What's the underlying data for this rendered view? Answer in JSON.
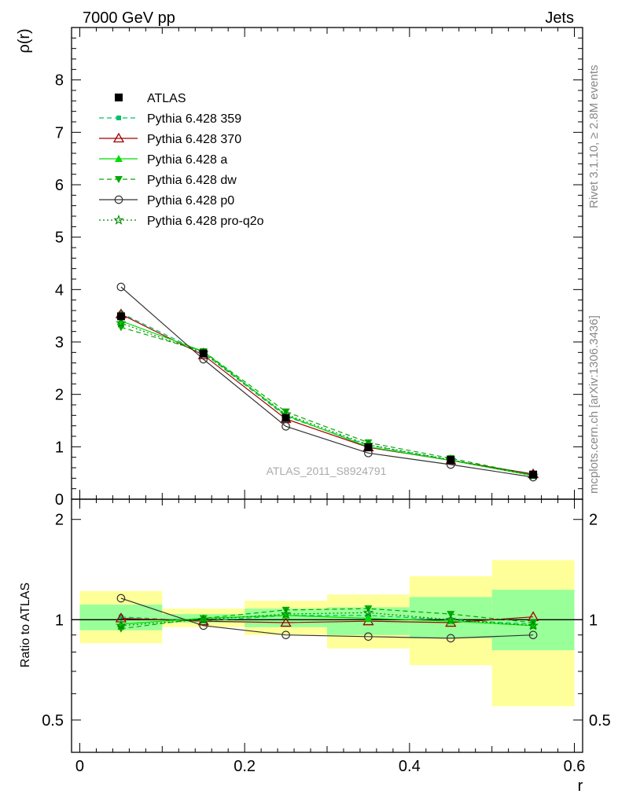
{
  "header": {
    "left": "7000 GeV pp",
    "right": "Jets"
  },
  "side_labels": {
    "rivet": "Rivet 3.1.10, ≥ 2.8M events",
    "mcplots": "mcplots.cern.ch [arXiv:1306.3436]"
  },
  "analysis_label": "ATLAS_2011_S8924791",
  "colors": {
    "atlas": "#000000",
    "p359": "#00c06a",
    "p370": "#a00000",
    "a": "#00dd00",
    "dw": "#00aa00",
    "p0": "#333333",
    "proq2o": "#008800",
    "band_yellow": "#ffff99",
    "band_green": "#99ff99"
  },
  "chart_data": [
    {
      "type": "line",
      "panel": "main",
      "ylabel": "ρ(r)",
      "ylim": [
        0,
        9
      ],
      "yticks": [
        0,
        1,
        2,
        3,
        4,
        5,
        6,
        7,
        8
      ],
      "ytick_labels": [
        "0",
        "1",
        "2",
        "3",
        "4",
        "5",
        "6",
        "7",
        "8"
      ],
      "xlim": [
        -0.01,
        0.61
      ],
      "x": [
        0.05,
        0.15,
        0.25,
        0.35,
        0.45,
        0.55
      ],
      "legend_position": "top-left",
      "series": [
        {
          "name": "ATLAS",
          "key": "atlas",
          "values": [
            3.49,
            2.78,
            1.55,
            0.99,
            0.75,
            0.47
          ],
          "marker": "square",
          "line": "none"
        },
        {
          "name": "Pythia 6.428 359",
          "key": "p359",
          "values": [
            3.55,
            2.79,
            1.58,
            1.03,
            0.75,
            0.46
          ],
          "marker": "smallsquare",
          "line": "dashed"
        },
        {
          "name": "Pythia 6.428 370",
          "key": "p370",
          "values": [
            3.53,
            2.75,
            1.53,
            0.99,
            0.74,
            0.48
          ],
          "marker": "triangle-open",
          "line": "solid"
        },
        {
          "name": "Pythia 6.428 a",
          "key": "a",
          "values": [
            3.4,
            2.82,
            1.6,
            1.0,
            0.74,
            0.45
          ],
          "marker": "triangle",
          "line": "solid"
        },
        {
          "name": "Pythia 6.428 dw",
          "key": "dw",
          "values": [
            3.28,
            2.82,
            1.67,
            1.08,
            0.78,
            0.46
          ],
          "marker": "triangle-down",
          "line": "dashed"
        },
        {
          "name": "Pythia 6.428 p0",
          "key": "p0",
          "values": [
            4.05,
            2.67,
            1.39,
            0.88,
            0.66,
            0.42
          ],
          "marker": "circle-open",
          "line": "solid"
        },
        {
          "name": "Pythia 6.428 pro-q2o",
          "key": "proq2o",
          "values": [
            3.36,
            2.79,
            1.62,
            1.04,
            0.75,
            0.45
          ],
          "marker": "star",
          "line": "dotted"
        }
      ]
    },
    {
      "type": "line",
      "panel": "ratio",
      "ylabel": "Ratio to ATLAS",
      "xlabel": "r",
      "yscale": "log",
      "ylim": [
        0.4,
        2.3
      ],
      "yticks": [
        0.5,
        1,
        2
      ],
      "ytick_labels": [
        "0.5",
        "1",
        "2"
      ],
      "xlim": [
        -0.01,
        0.61
      ],
      "xticks": [
        0,
        0.2,
        0.4,
        0.6
      ],
      "xtick_labels": [
        "0",
        "0.2",
        "0.4",
        "0.6"
      ],
      "x": [
        0.05,
        0.15,
        0.25,
        0.35,
        0.45,
        0.55
      ],
      "bands": {
        "x_low": [
          0.0,
          0.1,
          0.2,
          0.3,
          0.4,
          0.5
        ],
        "x_high": [
          0.1,
          0.2,
          0.3,
          0.4,
          0.5,
          0.6
        ],
        "yellow_low": [
          0.85,
          0.95,
          0.9,
          0.82,
          0.73,
          0.55
        ],
        "yellow_high": [
          1.22,
          1.08,
          1.14,
          1.19,
          1.35,
          1.51
        ],
        "green_low": [
          0.93,
          0.98,
          0.95,
          0.9,
          0.88,
          0.81
        ],
        "green_high": [
          1.11,
          1.04,
          1.08,
          1.09,
          1.17,
          1.23
        ]
      },
      "series": [
        {
          "key": "p359",
          "values": [
            1.02,
            0.99,
            1.03,
            1.03,
            1.0,
            0.97
          ],
          "marker": "smallsquare",
          "line": "dashed"
        },
        {
          "key": "p370",
          "values": [
            1.01,
            0.99,
            0.98,
            0.99,
            0.98,
            1.02
          ],
          "marker": "triangle-open",
          "line": "solid"
        },
        {
          "key": "a",
          "values": [
            0.97,
            1.01,
            1.03,
            1.01,
            0.99,
            0.96
          ],
          "marker": "triangle",
          "line": "solid"
        },
        {
          "key": "dw",
          "values": [
            0.94,
            1.01,
            1.07,
            1.08,
            1.04,
            0.98
          ],
          "marker": "triangle-down",
          "line": "dashed"
        },
        {
          "key": "p0",
          "values": [
            1.16,
            0.96,
            0.9,
            0.89,
            0.88,
            0.9
          ],
          "marker": "circle-open",
          "line": "solid"
        },
        {
          "key": "proq2o",
          "values": [
            0.96,
            1.0,
            1.04,
            1.05,
            1.0,
            0.96
          ],
          "marker": "star",
          "line": "dotted"
        }
      ]
    }
  ]
}
